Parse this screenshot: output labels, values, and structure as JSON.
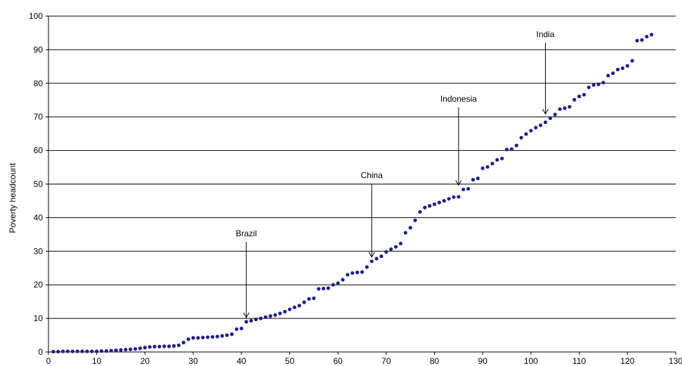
{
  "chart_data": {
    "type": "scatter",
    "title": "",
    "xlabel": "",
    "ylabel": "Poverty headcount",
    "xlim": [
      0,
      130
    ],
    "ylim": [
      0,
      100
    ],
    "xticks": [
      "0",
      "10",
      "20",
      "30",
      "40",
      "50",
      "60",
      "70",
      "80",
      "90",
      "100",
      "110",
      "120",
      "130"
    ],
    "yticks": [
      "0",
      "10",
      "20",
      "30",
      "40",
      "50",
      "60",
      "70",
      "80",
      "90",
      "100"
    ],
    "grid": "horizontal",
    "marker_color": "#1f1f8a",
    "series": [
      {
        "x": [
          1,
          2,
          3,
          4,
          5,
          6,
          7,
          8,
          9,
          10,
          11,
          12,
          13,
          14,
          15,
          16,
          17,
          18,
          19,
          20,
          21,
          22,
          23,
          24,
          25,
          26,
          27,
          28,
          29,
          30,
          31,
          32,
          33,
          34,
          35,
          36,
          37,
          38,
          39,
          40,
          41,
          42,
          43,
          44,
          45,
          46,
          47,
          48,
          49,
          50,
          51,
          52,
          53,
          54,
          55,
          56,
          57,
          58,
          59,
          60,
          61,
          62,
          63,
          64,
          65,
          66,
          67,
          68,
          69,
          70,
          71,
          72,
          73,
          74,
          75,
          76,
          77,
          78,
          79,
          80,
          81,
          82,
          83,
          84,
          85,
          86,
          87,
          88,
          89,
          90,
          91,
          92,
          93,
          94,
          95,
          96,
          97,
          98,
          99,
          100,
          101,
          102,
          103,
          104,
          105,
          106,
          107,
          108,
          109,
          110,
          111,
          112,
          113,
          114,
          115,
          116,
          117,
          118,
          119,
          120,
          121,
          122,
          123,
          124,
          125
        ],
        "y": [
          0.1,
          0.1,
          0.2,
          0.2,
          0.2,
          0.2,
          0.2,
          0.2,
          0.2,
          0.2,
          0.3,
          0.3,
          0.4,
          0.5,
          0.6,
          0.7,
          0.8,
          0.9,
          1.1,
          1.3,
          1.5,
          1.6,
          1.6,
          1.7,
          1.7,
          1.8,
          2.0,
          2.8,
          3.8,
          4.2,
          4.2,
          4.3,
          4.4,
          4.5,
          4.6,
          4.8,
          5.0,
          5.3,
          6.8,
          7.0,
          9.0,
          9.3,
          9.7,
          10.0,
          10.4,
          10.7,
          11.0,
          11.5,
          12.0,
          12.7,
          13.3,
          13.8,
          14.8,
          15.8,
          16.0,
          18.8,
          18.9,
          19.0,
          20.0,
          20.5,
          21.5,
          23.0,
          23.5,
          23.7,
          23.8,
          25.3,
          27.0,
          27.8,
          28.5,
          29.8,
          30.6,
          31.3,
          32.3,
          35.5,
          37.0,
          39.2,
          41.7,
          43.0,
          43.5,
          44.0,
          44.5,
          45.0,
          45.6,
          46.1,
          46.2,
          48.4,
          48.6,
          51.3,
          51.7,
          54.7,
          55.1,
          56.1,
          57.2,
          57.6,
          60.3,
          60.4,
          61.5,
          63.8,
          64.9,
          65.9,
          66.8,
          67.5,
          68.4,
          69.6,
          70.7,
          72.3,
          72.6,
          73.0,
          75.1,
          76.1,
          76.6,
          78.8,
          79.5,
          79.7,
          80.2,
          82.3,
          83.0,
          84.1,
          84.5,
          85.2,
          86.7,
          92.7,
          92.9,
          93.9,
          94.5
        ]
      }
    ],
    "annotations": [
      {
        "text": "Brazil",
        "x": 41,
        "y": 9.0
      },
      {
        "text": "China",
        "x": 67,
        "y": 27.0
      },
      {
        "text": "Indonesia",
        "x": 85,
        "y": 48.4
      },
      {
        "text": "India",
        "x": 103,
        "y": 69.6
      }
    ]
  }
}
